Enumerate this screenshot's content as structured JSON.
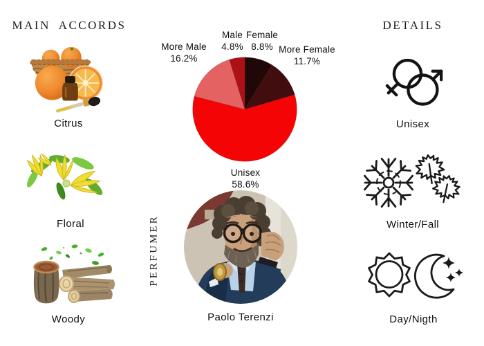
{
  "page": {
    "background": "#ffffff"
  },
  "left_panel": {
    "title": "MAIN ACCORDS",
    "items": [
      {
        "label": "Citrus",
        "icon": "oranges-essential-oil-illustration"
      },
      {
        "label": "Floral",
        "icon": "ylang-ylang-flowers-illustration"
      },
      {
        "label": "Woody",
        "icon": "wood-logs-leaves-illustration"
      }
    ]
  },
  "right_panel": {
    "title": "DETAILS",
    "items": [
      {
        "label": "Unisex",
        "icon": "male-female-symbols-icon"
      },
      {
        "label": "Winter/Fall",
        "icon": "snowflake-maple-leaves-icon"
      },
      {
        "label": "Day/Nigth",
        "icon": "sun-crescent-moon-icon"
      }
    ]
  },
  "perfumer": {
    "caption": "PERFUMER",
    "name": "Paolo Terenzi",
    "photo": "circular-portrait-photo"
  },
  "chart_data": {
    "type": "pie",
    "title": "",
    "start_angle_deg": 0,
    "direction": "clockwise",
    "legend_position": "outside-labels",
    "slices": [
      {
        "name": "Female",
        "value": 8.8,
        "pct_label": "8.8%",
        "color": "#200708"
      },
      {
        "name": "More Female",
        "value": 11.7,
        "pct_label": "11.7%",
        "color": "#420d0e"
      },
      {
        "name": "Unisex",
        "value": 58.6,
        "pct_label": "58.6%",
        "color": "#f40404"
      },
      {
        "name": "More Male",
        "value": 16.2,
        "pct_label": "16.2%",
        "color": "#e56263"
      },
      {
        "name": "Male",
        "value": 4.8,
        "pct_label": "4.8%",
        "color": "#ae1115"
      }
    ]
  }
}
